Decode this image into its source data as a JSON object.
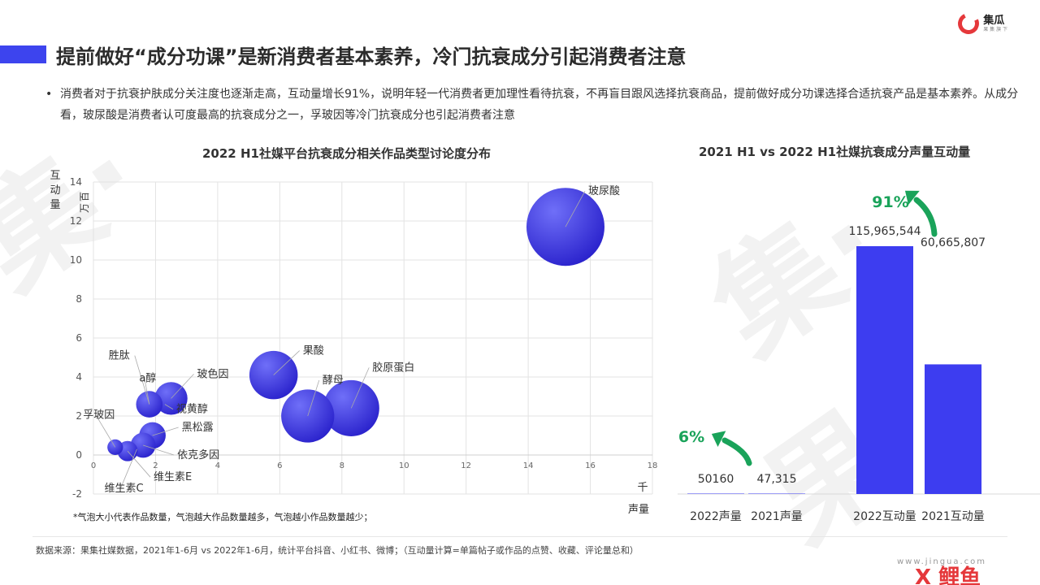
{
  "header": {
    "title": "提前做好“成分功课”是新消费者基本素养，冷门抗衰成分引起消费者注意",
    "logo_name": "集瓜",
    "logo_sub": "果 集 旗 下"
  },
  "bullet": {
    "text": "消费者对于抗衰护肤成分关注度也逐渐走高，互动量增长91%，说明年轻一代消费者更加理性看待抗衰，不再盲目跟风选择抗衰商品，提前做好成分功课选择合适抗衰产品是基本素养。从成分看，玻尿酸是消费者认可度最高的抗衰成分之一，孚玻因等冷门抗衰成分也引起消费者注意"
  },
  "chart_data": [
    {
      "type": "scatter",
      "title": "2022 H1社媒平台抗衰成分相关作品类型讨论度分布",
      "xlabel": "声量",
      "xunit": "千",
      "ylabel": "互动量",
      "yunit": "百万",
      "xlim": [
        0,
        18
      ],
      "ylim": [
        -2,
        14
      ],
      "xticks": [
        0,
        2,
        4,
        6,
        8,
        10,
        12,
        14,
        16,
        18
      ],
      "yticks": [
        -2,
        0,
        2,
        4,
        6,
        8,
        10,
        12,
        14
      ],
      "grid": true,
      "bubble_color": "#3d3df0",
      "points": [
        {
          "name": "玻尿酸",
          "x": 15.2,
          "y": 11.7,
          "size": 1.0
        },
        {
          "name": "果酸",
          "x": 5.8,
          "y": 4.1,
          "size": 0.62
        },
        {
          "name": "酵母",
          "x": 6.9,
          "y": 2.0,
          "size": 0.68
        },
        {
          "name": "胶原蛋白",
          "x": 8.3,
          "y": 2.4,
          "size": 0.72
        },
        {
          "name": "胜肽",
          "x": 1.8,
          "y": 2.6,
          "size": 0.34
        },
        {
          "name": "a醇",
          "x": 1.8,
          "y": 2.6,
          "size": 0.0
        },
        {
          "name": "玻色因",
          "x": 2.5,
          "y": 2.9,
          "size": 0.42
        },
        {
          "name": "视黄醇",
          "x": 2.3,
          "y": 2.6,
          "size": 0.0
        },
        {
          "name": "黑松露",
          "x": 1.9,
          "y": 1.0,
          "size": 0.34
        },
        {
          "name": "孚玻因",
          "x": 0.7,
          "y": 0.4,
          "size": 0.2
        },
        {
          "name": "依克多因",
          "x": 1.6,
          "y": 0.5,
          "size": 0.32
        },
        {
          "name": "维生素E",
          "x": 1.1,
          "y": 0.2,
          "size": 0.26
        },
        {
          "name": "维生素C",
          "x": 1.4,
          "y": 0.3,
          "size": 0.0
        }
      ],
      "footnote": "*气泡大小代表作品数量，气泡越大作品数量越多，气泡越小作品数量越少；"
    },
    {
      "type": "bar",
      "title": "2021 H1 vs 2022 H1社媒抗衰成分声量互动量",
      "categories": [
        "2022声量",
        "2021声量",
        "2022互动量",
        "2021互动量"
      ],
      "values": [
        50160,
        47315,
        115965544,
        60665807
      ],
      "value_labels": [
        "50160",
        "47,315",
        "115,965,544",
        "60,665,807"
      ],
      "bar_color": "#3d3df0",
      "growth": [
        {
          "label": "6%",
          "color": "#1aa35a"
        },
        {
          "label": "91%",
          "color": "#1aa35a"
        }
      ]
    }
  ],
  "footer": {
    "source": "数据来源：果集社媒数据，2021年1-6月 vs 2022年1-6月，统计平台抖音、小红书、微博；（互动量计算=单篇帖子或作品的点赞、收藏、评论量总和）",
    "site": "www.jingua.com",
    "brand": "X 鲤鱼"
  }
}
